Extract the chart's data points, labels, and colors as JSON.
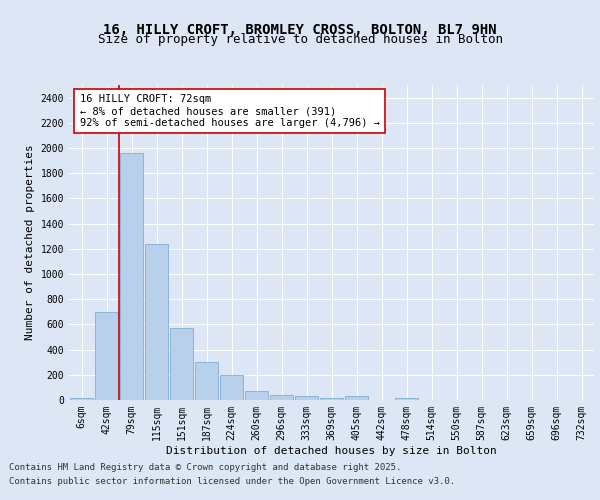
{
  "title_line1": "16, HILLY CROFT, BROMLEY CROSS, BOLTON, BL7 9HN",
  "title_line2": "Size of property relative to detached houses in Bolton",
  "xlabel": "Distribution of detached houses by size in Bolton",
  "ylabel": "Number of detached properties",
  "categories": [
    "6sqm",
    "42sqm",
    "79sqm",
    "115sqm",
    "151sqm",
    "187sqm",
    "224sqm",
    "260sqm",
    "296sqm",
    "333sqm",
    "369sqm",
    "405sqm",
    "442sqm",
    "478sqm",
    "514sqm",
    "550sqm",
    "587sqm",
    "623sqm",
    "659sqm",
    "696sqm",
    "732sqm"
  ],
  "values": [
    15,
    700,
    1960,
    1240,
    575,
    305,
    200,
    75,
    40,
    30,
    15,
    30,
    0,
    15,
    0,
    0,
    0,
    0,
    0,
    0,
    0
  ],
  "bar_color": "#b8d0ea",
  "bar_edge_color": "#6fa8d0",
  "vline_color": "#cc0000",
  "annotation_text": "16 HILLY CROFT: 72sqm\n← 8% of detached houses are smaller (391)\n92% of semi-detached houses are larger (4,796) →",
  "annotation_box_facecolor": "#ffffff",
  "annotation_box_edge": "#cc0000",
  "ylim": [
    0,
    2500
  ],
  "yticks": [
    0,
    200,
    400,
    600,
    800,
    1000,
    1200,
    1400,
    1600,
    1800,
    2000,
    2200,
    2400
  ],
  "background_color": "#dce6f5",
  "plot_bg_color": "#dce6f5",
  "footer_line1": "Contains HM Land Registry data © Crown copyright and database right 2025.",
  "footer_line2": "Contains public sector information licensed under the Open Government Licence v3.0.",
  "title_fontsize": 10,
  "subtitle_fontsize": 9,
  "axis_label_fontsize": 8,
  "tick_fontsize": 7,
  "annotation_fontsize": 7.5,
  "footer_fontsize": 6.5
}
